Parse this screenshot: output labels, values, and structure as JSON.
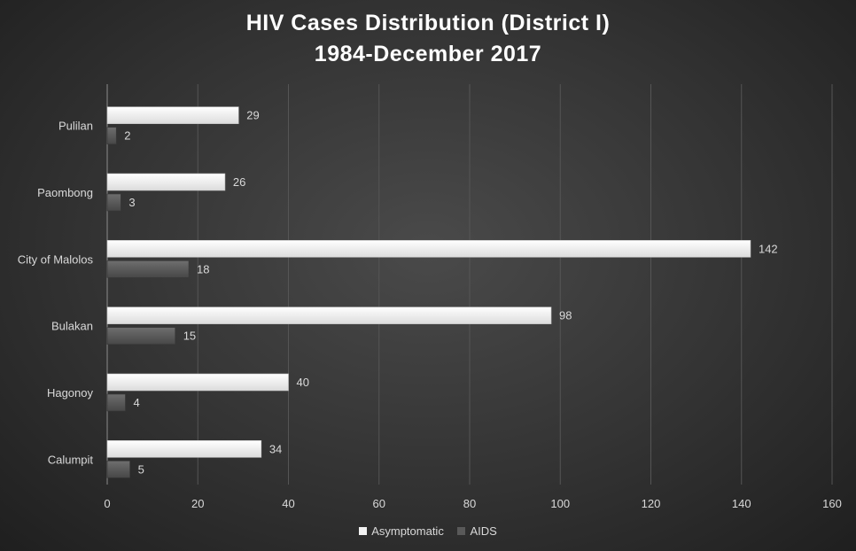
{
  "chart_data": {
    "type": "bar",
    "orientation": "horizontal",
    "title": "HIV Cases Distribution  (District I)",
    "subtitle": "1984-December  2017",
    "categories": [
      "Pulilan",
      "Paombong",
      "City of Malolos",
      "Bulakan",
      "Hagonoy",
      "Calumpit"
    ],
    "series": [
      {
        "name": "Asymptomatic",
        "color": "#f2f2f2",
        "values": [
          29,
          26,
          142,
          98,
          40,
          34
        ]
      },
      {
        "name": "AIDS",
        "color": "#595959",
        "values": [
          2,
          3,
          18,
          15,
          4,
          5
        ]
      }
    ],
    "xlim": [
      0,
      160
    ],
    "xticks": [
      0,
      20,
      40,
      60,
      80,
      100,
      120,
      140,
      160
    ],
    "grid": "vertical",
    "legend": "bottom"
  }
}
